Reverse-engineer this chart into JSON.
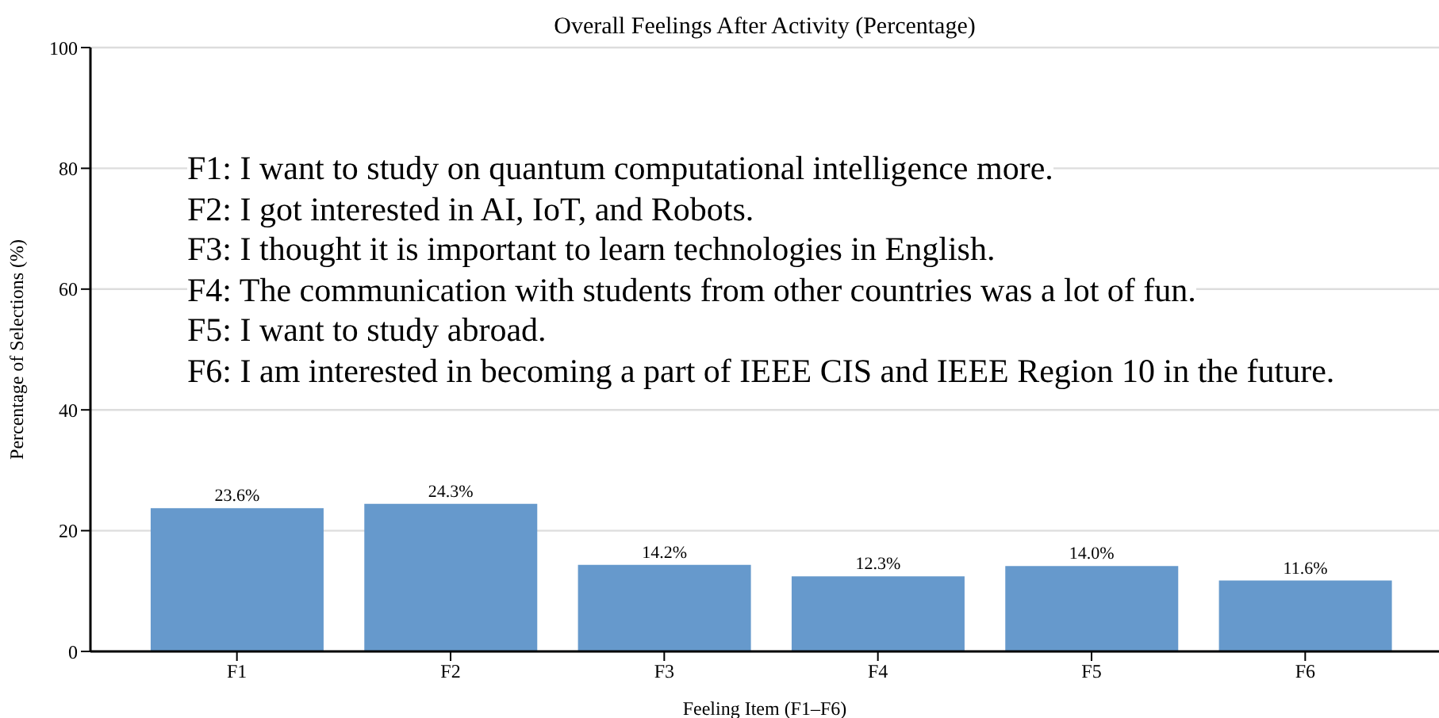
{
  "chart_data": {
    "type": "bar",
    "title": "Overall Feelings After Activity (Percentage)",
    "xlabel": "Feeling Item (F1–F6)",
    "ylabel": "Percentage of Selections (%)",
    "categories": [
      "F1",
      "F2",
      "F3",
      "F4",
      "F5",
      "F6"
    ],
    "values": [
      23.6,
      24.3,
      14.2,
      12.3,
      14.0,
      11.6
    ],
    "value_labels": [
      "23.6%",
      "24.3%",
      "14.2%",
      "12.3%",
      "14.0%",
      "11.6%"
    ],
    "color": "#6699cc",
    "ylim": [
      0,
      100
    ],
    "yticks": [
      0,
      20,
      40,
      60,
      80,
      100
    ],
    "grid": "y",
    "annotations": [
      "F1: I want to study on quantum computational intelligence more.",
      "F2: I got interested in AI, IoT, and Robots.",
      "F3: I thought it is important to learn technologies in English.",
      "F4: The communication with students from other countries was a lot of fun.",
      "F5: I want to study abroad.",
      "F6: I am interested in becoming a part of IEEE CIS and IEEE Region 10 in the future."
    ]
  }
}
